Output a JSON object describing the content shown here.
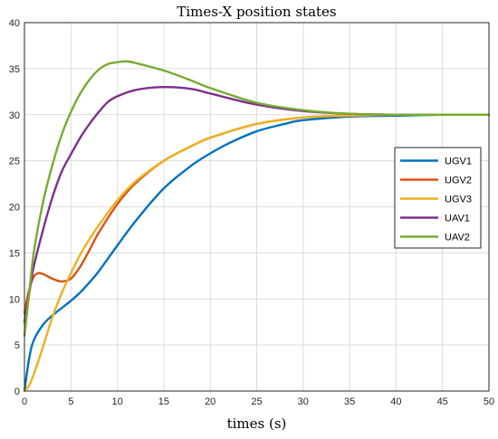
{
  "chart_data": {
    "type": "line",
    "title": "Times-X position states",
    "xlabel": "times (s)",
    "ylabel": "",
    "xlim": [
      0,
      50
    ],
    "ylim": [
      0,
      40
    ],
    "xticks": [
      0,
      5,
      10,
      15,
      20,
      25,
      30,
      35,
      40,
      45,
      50
    ],
    "yticks": [
      0,
      5,
      10,
      15,
      20,
      25,
      30,
      35,
      40
    ],
    "grid": true,
    "legend_position": "right",
    "series": [
      {
        "name": "UGV1",
        "color": "#0072BD",
        "x": [
          0,
          0.5,
          1,
          2,
          3,
          4,
          5,
          6,
          7,
          8,
          10,
          12,
          15,
          18,
          20,
          22,
          25,
          28,
          30,
          35,
          40,
          45,
          50
        ],
        "y": [
          0,
          3.5,
          5.5,
          7.2,
          8.2,
          9.0,
          9.8,
          10.7,
          11.8,
          13.0,
          15.8,
          18.5,
          22.0,
          24.5,
          25.8,
          26.9,
          28.2,
          29.0,
          29.4,
          29.8,
          29.9,
          30.0,
          30.0
        ]
      },
      {
        "name": "UGV2",
        "color": "#D95319",
        "x": [
          0,
          0.5,
          1,
          1.5,
          2,
          3,
          4,
          5,
          6,
          7,
          8,
          10,
          12,
          15,
          18,
          20,
          25,
          30,
          35,
          40,
          45,
          50
        ],
        "y": [
          8.5,
          11.0,
          12.4,
          12.8,
          12.7,
          12.2,
          11.9,
          12.2,
          13.5,
          15.3,
          17.2,
          20.3,
          22.6,
          25.0,
          26.6,
          27.5,
          29.0,
          29.7,
          29.9,
          30.0,
          30.0,
          30.0
        ]
      },
      {
        "name": "UGV3",
        "color": "#EDB120",
        "x": [
          0,
          0.5,
          1,
          2,
          3,
          4,
          5,
          6,
          7,
          8,
          10,
          12,
          15,
          18,
          20,
          25,
          30,
          35,
          40,
          45,
          50
        ],
        "y": [
          0,
          0.6,
          1.8,
          4.8,
          8.0,
          10.6,
          12.8,
          14.8,
          16.5,
          18.0,
          20.7,
          22.8,
          25.0,
          26.6,
          27.5,
          29.0,
          29.7,
          29.9,
          30.0,
          30.0,
          30.0
        ]
      },
      {
        "name": "UAV1",
        "color": "#7E2F8E",
        "x": [
          0,
          0.5,
          1,
          2,
          3,
          4,
          5,
          6,
          7,
          8,
          9,
          10,
          12,
          15,
          18,
          20,
          25,
          30,
          35,
          40,
          45,
          50
        ],
        "y": [
          7.5,
          10.5,
          13.5,
          17.5,
          21.0,
          23.8,
          25.7,
          27.5,
          29.0,
          30.3,
          31.4,
          32.0,
          32.7,
          33.0,
          32.8,
          32.3,
          31.1,
          30.4,
          30.1,
          30.0,
          30.0,
          30.0
        ]
      },
      {
        "name": "UAV2",
        "color": "#77AC30",
        "x": [
          0,
          0.5,
          1,
          2,
          3,
          4,
          5,
          6,
          7,
          8,
          9,
          10,
          11,
          12,
          15,
          18,
          20,
          25,
          30,
          35,
          40,
          45,
          50
        ],
        "y": [
          6.0,
          10.5,
          15.0,
          20.5,
          24.5,
          27.8,
          30.3,
          32.3,
          33.8,
          34.9,
          35.5,
          35.7,
          35.8,
          35.6,
          34.8,
          33.7,
          32.9,
          31.3,
          30.5,
          30.1,
          30.0,
          30.0,
          30.0
        ]
      }
    ]
  }
}
